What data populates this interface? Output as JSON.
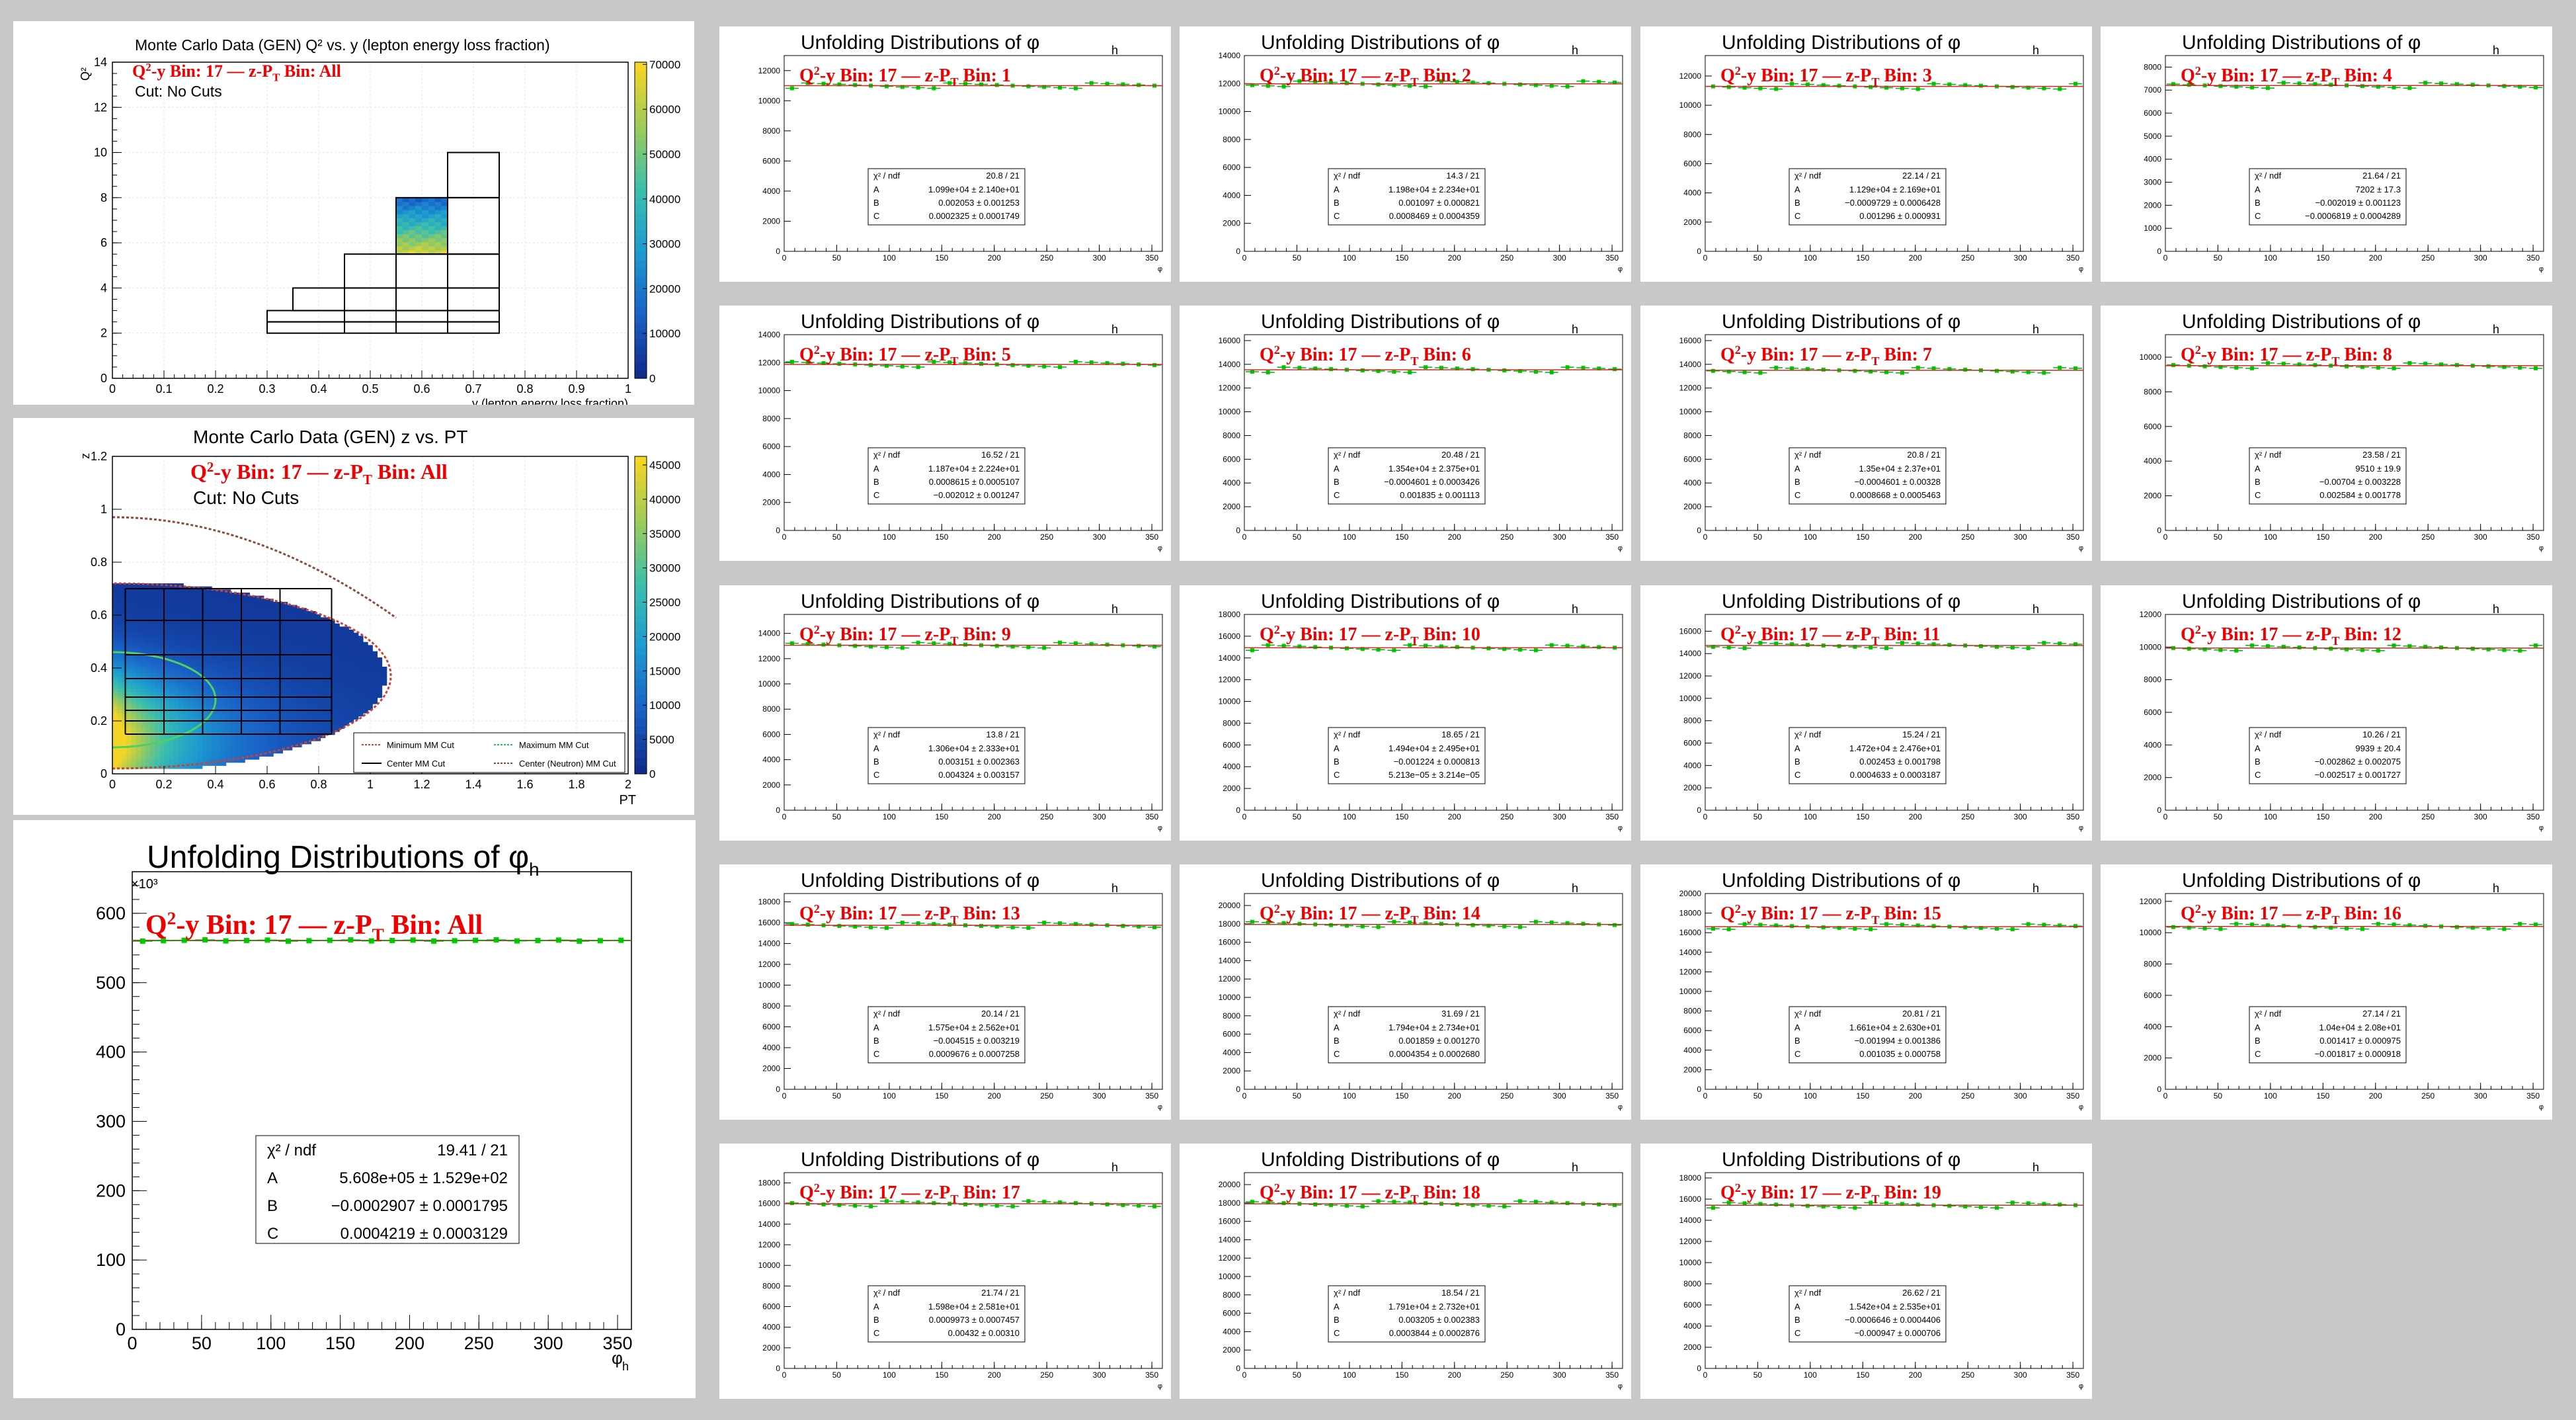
{
  "colors": {
    "background": "#c8c8c8",
    "panel": "#ffffff",
    "data_points": "#00d000",
    "fit_line": "#cc2a2a",
    "label_red": "#ee0000",
    "palette": [
      "#0f2b8c",
      "#1a62c8",
      "#1d9bd0",
      "#3bbfad",
      "#9ccb5b",
      "#f5d525"
    ]
  },
  "q2y_plot": {
    "title": "Monte Carlo Data (GEN) Q² vs. y (lepton energy loss fraction)",
    "ylabel": "Q²",
    "xlabel": "y (lepton energy loss fraction)",
    "bin_label": "Q²-y Bin: 17  —  z-PT Bin: All",
    "cut_label": "Cut: No Cuts",
    "x_ticks": [
      "0",
      "0.1",
      "0.2",
      "0.3",
      "0.4",
      "0.5",
      "0.6",
      "0.7",
      "0.8",
      "0.9",
      "1"
    ],
    "y_ticks": [
      "0",
      "2",
      "4",
      "6",
      "8",
      "10",
      "12",
      "14"
    ],
    "z_ticks": [
      "0",
      "10000",
      "20000",
      "30000",
      "40000",
      "50000",
      "60000",
      "70000"
    ],
    "xlim": [
      0,
      1
    ],
    "ylim": [
      0,
      14
    ],
    "zlim": [
      0,
      70000
    ],
    "bin_boundaries": [
      {
        "y": [
          0.3,
          0.75
        ],
        "q2": [
          2.0,
          2.5
        ]
      },
      {
        "y": [
          0.3,
          0.75
        ],
        "q2": [
          2.5,
          3.0
        ]
      },
      {
        "y": [
          0.35,
          0.75
        ],
        "q2": [
          3.0,
          4.0
        ]
      },
      {
        "y": [
          0.45,
          0.75
        ],
        "q2": [
          4.0,
          5.5
        ]
      },
      {
        "y": [
          0.55,
          0.75
        ],
        "q2": [
          5.5,
          8.0
        ]
      },
      {
        "y": [
          0.65,
          0.75
        ],
        "q2": [
          8.0,
          10.0
        ]
      }
    ],
    "filled_bin": {
      "y": [
        0.55,
        0.65
      ],
      "q2": [
        5.5,
        8.0
      ]
    }
  },
  "zpt_plot": {
    "title": "Monte Carlo Data (GEN) z vs. PT",
    "ylabel": "z",
    "xlabel": "PT",
    "bin_label": "Q²-y Bin: 17  —  z-PT Bin: All",
    "cut_label": "Cut: No Cuts",
    "x_ticks": [
      "0",
      "0.2",
      "0.4",
      "0.6",
      "0.8",
      "1",
      "1.2",
      "1.4",
      "1.6",
      "1.8",
      "2"
    ],
    "y_ticks": [
      "0",
      "0.2",
      "0.4",
      "0.6",
      "0.8",
      "1",
      "1.2"
    ],
    "z_ticks": [
      "0",
      "5000",
      "10000",
      "15000",
      "20000",
      "25000",
      "30000",
      "35000",
      "40000",
      "45000"
    ],
    "xlim": [
      0,
      2
    ],
    "ylim": [
      0,
      1.2
    ],
    "zlim": [
      0,
      47000
    ],
    "legend": [
      "Minimum MM Cut",
      "Maximum MM Cut",
      "Center MM Cut",
      "Center (Neutron) MM Cut"
    ],
    "z_bins": [
      0.15,
      0.2,
      0.24,
      0.29,
      0.36,
      0.45,
      0.58,
      0.7
    ],
    "pt_bins": [
      0.05,
      0.2,
      0.35,
      0.5,
      0.65,
      0.85
    ]
  },
  "main_plot": {
    "title": "Unfolding Distributions of φh",
    "bin_label": "Q²-y Bin: 17  —  z-PT Bin: All",
    "multiplier": "×10³",
    "xlabel": "φh",
    "y_ticks": [
      "0",
      "100",
      "200",
      "300",
      "400",
      "500",
      "600"
    ],
    "x_ticks": [
      "0",
      "50",
      "100",
      "150",
      "200",
      "250",
      "300",
      "350"
    ],
    "stats": {
      "header_label": "χ² / ndf",
      "header_value": "19.41 / 21",
      "rows": [
        {
          "name": "A",
          "value": "5.608e+05 ± 1.529e+02"
        },
        {
          "name": "B",
          "value": "−0.0002907 ± 0.0001795"
        },
        {
          "name": "C",
          "value": "0.0004219 ± 0.0003129"
        }
      ]
    }
  },
  "chart_data": [
    {
      "type": "line",
      "title": "Unfolding Distributions of φh",
      "xlabel": "φh",
      "ylabel": "",
      "xlim": [
        0,
        360
      ],
      "ylim": [
        0,
        660000
      ],
      "fit_A": 560800,
      "x_step": 15,
      "bin": "All"
    }
  ],
  "small_plots": [
    {
      "title": "Unfolding Distributions of φh",
      "bin_label": "Q²-y Bin: 17  —  z-PT Bin: 1",
      "y_ticks": [
        "0",
        "2000",
        "4000",
        "6000",
        "8000",
        "10000",
        "12000"
      ],
      "ymax": 13000,
      "level": 11000,
      "chi2": "20.8 / 21",
      "A": "1.099e+04 ± 2.140e+01",
      "B": "0.002053 ± 0.001253",
      "C": "0.0002325 ± 0.0001749"
    },
    {
      "title": "Unfolding Distributions of φh",
      "bin_label": "Q²-y Bin: 17  —  z-PT Bin: 2",
      "y_ticks": [
        "0",
        "2000",
        "4000",
        "6000",
        "8000",
        "10000",
        "12000",
        "14000"
      ],
      "ymax": 14000,
      "level": 11980,
      "chi2": "14.3 / 21",
      "A": "1.198e+04 ± 2.234e+01",
      "B": "0.001097 ± 0.000821",
      "C": "0.0008469 ± 0.0004359"
    },
    {
      "title": "Unfolding Distributions of φh",
      "bin_label": "Q²-y Bin: 17  —  z-PT Bin: 3",
      "y_ticks": [
        "0",
        "2000",
        "4000",
        "6000",
        "8000",
        "10000",
        "12000"
      ],
      "ymax": 13400,
      "level": 11290,
      "chi2": "22.14 / 21",
      "A": "1.129e+04 ± 2.169e+01",
      "B": "−0.0009729 ± 0.0006428",
      "C": "0.001296 ± 0.000931"
    },
    {
      "title": "Unfolding Distributions of φh",
      "bin_label": "Q²-y Bin: 17  —  z-PT Bin: 4",
      "y_ticks": [
        "0",
        "1000",
        "2000",
        "3000",
        "4000",
        "5000",
        "6000",
        "7000",
        "8000"
      ],
      "ymax": 8500,
      "level": 7202,
      "chi2": "21.64 / 21",
      "A": "7202 ± 17.3",
      "B": "−0.002019 ± 0.001123",
      "C": "−0.0006819 ± 0.0004289"
    },
    {
      "title": "Unfolding Distributions of φh",
      "bin_label": "Q²-y Bin: 17  —  z-PT Bin: 5",
      "y_ticks": [
        "0",
        "2000",
        "4000",
        "6000",
        "8000",
        "10000",
        "12000",
        "14000"
      ],
      "ymax": 14000,
      "level": 11870,
      "chi2": "16.52 / 21",
      "A": "1.187e+04 ± 2.224e+01",
      "B": "0.0008615 ± 0.0005107",
      "C": "−0.002012 ± 0.001247"
    },
    {
      "title": "Unfolding Distributions of φh",
      "bin_label": "Q²-y Bin: 17  —  z-PT Bin: 6",
      "y_ticks": [
        "0",
        "2000",
        "4000",
        "6000",
        "8000",
        "10000",
        "12000",
        "14000",
        "16000"
      ],
      "ymax": 16500,
      "level": 13540,
      "chi2": "20.48 / 21",
      "A": "1.354e+04 ± 2.375e+01",
      "B": "−0.0004601 ± 0.0003426",
      "C": "0.001835 ± 0.001113"
    },
    {
      "title": "Unfolding Distributions of φh",
      "bin_label": "Q²-y Bin: 17  —  z-PT Bin: 7",
      "y_ticks": [
        "0",
        "2000",
        "4000",
        "6000",
        "8000",
        "10000",
        "12000",
        "14000",
        "16000"
      ],
      "ymax": 16500,
      "level": 13500,
      "chi2": "20.8 / 21",
      "A": "1.35e+04 ± 2.37e+01",
      "B": "−0.0004601 ± 0.00328",
      "C": "0.0008668 ± 0.0005463"
    },
    {
      "title": "Unfolding Distributions of φh",
      "bin_label": "Q²-y Bin: 17  —  z-PT Bin: 8",
      "y_ticks": [
        "0",
        "2000",
        "4000",
        "6000",
        "8000",
        "10000"
      ],
      "ymax": 11300,
      "level": 9510,
      "chi2": "23.58 / 21",
      "A": "9510 ± 19.9",
      "B": "−0.00704 ± 0.003228",
      "C": "0.002584 ± 0.001778"
    },
    {
      "title": "Unfolding Distributions of φh",
      "bin_label": "Q²-y Bin: 17  —  z-PT Bin: 9",
      "y_ticks": [
        "0",
        "2000",
        "4000",
        "6000",
        "8000",
        "10000",
        "12000",
        "14000"
      ],
      "ymax": 15500,
      "level": 13060,
      "chi2": "13.8 / 21",
      "A": "1.306e+04 ± 2.333e+01",
      "B": "0.003151 ± 0.002363",
      "C": "0.004324 ± 0.003157"
    },
    {
      "title": "Unfolding Distributions of φh",
      "bin_label": "Q²-y Bin: 17  —  z-PT Bin: 10",
      "y_ticks": [
        "0",
        "2000",
        "4000",
        "6000",
        "8000",
        "10000",
        "12000",
        "14000",
        "16000",
        "18000"
      ],
      "ymax": 18000,
      "level": 14940,
      "chi2": "18.65 / 21",
      "A": "1.494e+04 ± 2.495e+01",
      "B": "−0.001224 ± 0.000813",
      "C": "5.213e−05 ± 3.214e−05"
    },
    {
      "title": "Unfolding Distributions of φh",
      "bin_label": "Q²-y Bin: 17  —  z-PT Bin: 11",
      "y_ticks": [
        "0",
        "2000",
        "4000",
        "6000",
        "8000",
        "10000",
        "12000",
        "14000",
        "16000"
      ],
      "ymax": 17500,
      "level": 14720,
      "chi2": "15.24 / 21",
      "A": "1.472e+04 ± 2.476e+01",
      "B": "0.002453 ± 0.001798",
      "C": "0.0004633 ± 0.0003187"
    },
    {
      "title": "Unfolding Distributions of φh",
      "bin_label": "Q²-y Bin: 17  —  z-PT Bin: 12",
      "y_ticks": [
        "0",
        "2000",
        "4000",
        "6000",
        "8000",
        "10000",
        "12000"
      ],
      "ymax": 12000,
      "level": 9939,
      "chi2": "10.26 / 21",
      "A": "9939 ± 20.4",
      "B": "−0.002862 ± 0.002075",
      "C": "−0.002517 ± 0.001727"
    },
    {
      "title": "Unfolding Distributions of φh",
      "bin_label": "Q²-y Bin: 17  —  z-PT Bin: 13",
      "y_ticks": [
        "0",
        "2000",
        "4000",
        "6000",
        "8000",
        "10000",
        "12000",
        "14000",
        "16000",
        "18000"
      ],
      "ymax": 18800,
      "level": 15750,
      "chi2": "20.14 / 21",
      "A": "1.575e+04 ± 2.562e+01",
      "B": "−0.004515 ± 0.003219",
      "C": "0.0009676 ± 0.0007258"
    },
    {
      "title": "Unfolding Distributions of φh",
      "bin_label": "Q²-y Bin: 17  —  z-PT Bin: 14",
      "y_ticks": [
        "0",
        "2000",
        "4000",
        "6000",
        "8000",
        "10000",
        "12000",
        "14000",
        "16000",
        "18000",
        "20000"
      ],
      "ymax": 21300,
      "level": 17940,
      "chi2": "31.69 / 21",
      "A": "1.794e+04 ± 2.734e+01",
      "B": "0.001859 ± 0.001270",
      "C": "0.0004354 ± 0.0002680"
    },
    {
      "title": "Unfolding Distributions of φh",
      "bin_label": "Q²-y Bin: 17  —  z-PT Bin: 15",
      "y_ticks": [
        "0",
        "2000",
        "4000",
        "6000",
        "8000",
        "10000",
        "12000",
        "14000",
        "16000",
        "18000",
        "20000"
      ],
      "ymax": 20000,
      "level": 16610,
      "chi2": "20.81 / 21",
      "A": "1.661e+04 ± 2.630e+01",
      "B": "−0.001994 ± 0.001386",
      "C": "0.001035 ± 0.000758"
    },
    {
      "title": "Unfolding Distributions of φh",
      "bin_label": "Q²-y Bin: 17  —  z-PT Bin: 16",
      "y_ticks": [
        "0",
        "2000",
        "4000",
        "6000",
        "8000",
        "10000",
        "12000"
      ],
      "ymax": 12500,
      "level": 10400,
      "chi2": "27.14 / 21",
      "A": "1.04e+04 ± 2.08e+01",
      "B": "0.001417 ± 0.000975",
      "C": "−0.001817 ± 0.000918"
    },
    {
      "title": "Unfolding Distributions of φh",
      "bin_label": "Q²-y Bin: 17  —  z-PT Bin: 17",
      "y_ticks": [
        "0",
        "2000",
        "4000",
        "6000",
        "8000",
        "10000",
        "12000",
        "14000",
        "16000",
        "18000"
      ],
      "ymax": 19000,
      "level": 15980,
      "chi2": "21.74 / 21",
      "A": "1.598e+04 ± 2.581e+01",
      "B": "0.0009973 ± 0.0007457",
      "C": "0.00432 ± 0.00310"
    },
    {
      "title": "Unfolding Distributions of φh",
      "bin_label": "Q²-y Bin: 17  —  z-PT Bin: 18",
      "y_ticks": [
        "0",
        "2000",
        "4000",
        "6000",
        "8000",
        "10000",
        "12000",
        "14000",
        "16000",
        "18000",
        "20000"
      ],
      "ymax": 21300,
      "level": 17910,
      "chi2": "18.54 / 21",
      "A": "1.791e+04 ± 2.732e+01",
      "B": "0.003205 ± 0.002383",
      "C": "0.0003844 ± 0.0002876"
    },
    {
      "title": "Unfolding Distributions of φh",
      "bin_label": "Q²-y Bin: 17  —  z-PT Bin: 19",
      "y_ticks": [
        "0",
        "2000",
        "4000",
        "6000",
        "8000",
        "10000",
        "12000",
        "14000",
        "16000",
        "18000"
      ],
      "ymax": 18500,
      "level": 15420,
      "chi2": "26.62 / 21",
      "A": "1.542e+04 ± 2.535e+01",
      "B": "−0.0006646 ± 0.0004406",
      "C": "−0.000947 ± 0.000706"
    }
  ],
  "small_x_ticks": [
    "0",
    "50",
    "100",
    "150",
    "200",
    "250",
    "300",
    "350"
  ],
  "small_xlabel": "φh",
  "stats_header_label": "χ² / ndf"
}
